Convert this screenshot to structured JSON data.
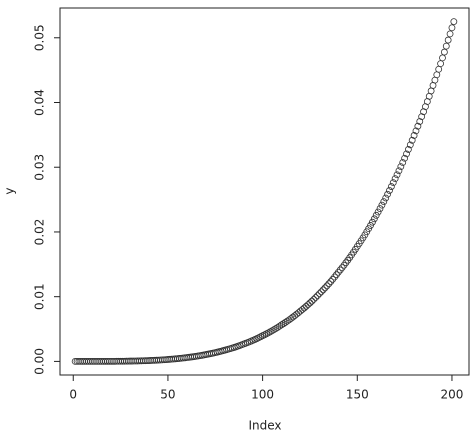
{
  "chart_data": {
    "type": "scatter",
    "xlabel": "Index",
    "ylabel": "y",
    "x": [
      1,
      2,
      3,
      4,
      5,
      6,
      7,
      8,
      9,
      10,
      11,
      12,
      13,
      14,
      15,
      16,
      17,
      18,
      19,
      20,
      21,
      22,
      23,
      24,
      25,
      26,
      27,
      28,
      29,
      30,
      31,
      32,
      33,
      34,
      35,
      36,
      37,
      38,
      39,
      40,
      41,
      42,
      43,
      44,
      45,
      46,
      47,
      48,
      49,
      50,
      51,
      52,
      53,
      54,
      55,
      56,
      57,
      58,
      59,
      60,
      61,
      62,
      63,
      64,
      65,
      66,
      67,
      68,
      69,
      70,
      71,
      72,
      73,
      74,
      75,
      76,
      77,
      78,
      79,
      80,
      81,
      82,
      83,
      84,
      85,
      86,
      87,
      88,
      89,
      90,
      91,
      92,
      93,
      94,
      95,
      96,
      97,
      98,
      99,
      100,
      101,
      102,
      103,
      104,
      105,
      106,
      107,
      108,
      109,
      110,
      111,
      112,
      113,
      114,
      115,
      116,
      117,
      118,
      119,
      120,
      121,
      122,
      123,
      124,
      125,
      126,
      127,
      128,
      129,
      130,
      131,
      132,
      133,
      134,
      135,
      136,
      137,
      138,
      139,
      140,
      141,
      142,
      143,
      144,
      145,
      146,
      147,
      148,
      149,
      150,
      151,
      152,
      153,
      154,
      155,
      156,
      157,
      158,
      159,
      160,
      161,
      162,
      163,
      164,
      165,
      166,
      167,
      168,
      169,
      170,
      171,
      172,
      173,
      174,
      175,
      176,
      177,
      178,
      179,
      180,
      181,
      182,
      183,
      184,
      185,
      186,
      187,
      188,
      189,
      190,
      191,
      192,
      193,
      194,
      195,
      196,
      197,
      198,
      199,
      200,
      201
    ],
    "values": [
      0,
      0,
      0,
      0,
      0,
      0,
      0,
      0,
      0,
      0,
      0,
      0,
      0,
      0,
      0,
      0,
      1e-05,
      1e-05,
      1e-05,
      1e-05,
      1e-05,
      1e-05,
      2e-05,
      2e-05,
      2e-05,
      3e-05,
      3e-05,
      4e-05,
      4e-05,
      5e-05,
      5e-05,
      6e-05,
      6e-05,
      7e-05,
      8e-05,
      9e-05,
      0.0001,
      0.00011,
      0.00012,
      0.000134,
      0.000146,
      0.000158,
      0.000172,
      0.000187,
      0.000203,
      0.00022,
      0.000239,
      0.000259,
      0.000281,
      0.000305,
      0.000326,
      0.000349,
      0.000373,
      0.000399,
      0.000427,
      0.000457,
      0.000489,
      0.000523,
      0.000559,
      0.000599,
      0.000634,
      0.000671,
      0.000711,
      0.000752,
      0.000796,
      0.000843,
      0.000893,
      0.000945,
      0.001,
      0.00106,
      0.001114,
      0.00117,
      0.001229,
      0.001292,
      0.001357,
      0.001426,
      0.001498,
      0.001573,
      0.001653,
      0.001737,
      0.001814,
      0.001895,
      0.00198,
      0.002068,
      0.00216,
      0.002257,
      0.002357,
      0.002463,
      0.002572,
      0.002686,
      0.002793,
      0.002904,
      0.00302,
      0.00314,
      0.003265,
      0.003395,
      0.00353,
      0.003671,
      0.003817,
      0.00397,
      0.00411,
      0.00426,
      0.00441,
      0.00457,
      0.00474,
      0.00491,
      0.00508,
      0.00526,
      0.00545,
      0.00565,
      0.00583,
      0.00602,
      0.00622,
      0.00642,
      0.00663,
      0.00685,
      0.00707,
      0.0073,
      0.00754,
      0.00779,
      0.00802,
      0.00826,
      0.00851,
      0.00877,
      0.00903,
      0.0093,
      0.00958,
      0.00987,
      0.01016,
      0.01047,
      0.01076,
      0.01106,
      0.01137,
      0.01168,
      0.01201,
      0.01234,
      0.01268,
      0.01304,
      0.0134,
      0.01377,
      0.01413,
      0.01449,
      0.01486,
      0.01525,
      0.01564,
      0.01604,
      0.01646,
      0.01688,
      0.01732,
      0.01777,
      0.0182,
      0.01864,
      0.01909,
      0.01955,
      0.02003,
      0.02051,
      0.02101,
      0.02151,
      0.02203,
      0.02257,
      0.02308,
      0.02361,
      0.02414,
      0.02469,
      0.02525,
      0.02582,
      0.02641,
      0.02701,
      0.02762,
      0.02824,
      0.02884,
      0.02946,
      0.03009,
      0.03073,
      0.03139,
      0.03206,
      0.03275,
      0.03345,
      0.03416,
      0.03491,
      0.03562,
      0.03634,
      0.03707,
      0.03782,
      0.03858,
      0.03936,
      0.04015,
      0.04096,
      0.04179,
      0.04264,
      0.04346,
      0.04429,
      0.04514,
      0.04601,
      0.04689,
      0.04779,
      0.04871,
      0.04965,
      0.0506,
      0.05155,
      0.0525
    ],
    "color": "#333333",
    "xlim": [
      -7,
      209
    ],
    "xticks": [
      0,
      50,
      100,
      150,
      200
    ],
    "ylim": [
      -0.0021,
      0.0546
    ],
    "yticks": [
      {
        "value": 0,
        "label": "0.00"
      },
      {
        "value": 0.01,
        "label": "0.01"
      },
      {
        "value": 0.02,
        "label": "0.02"
      },
      {
        "value": 0.03,
        "label": "0.03"
      },
      {
        "value": 0.04,
        "label": "0.04"
      },
      {
        "value": 0.05,
        "label": "0.05"
      }
    ]
  }
}
